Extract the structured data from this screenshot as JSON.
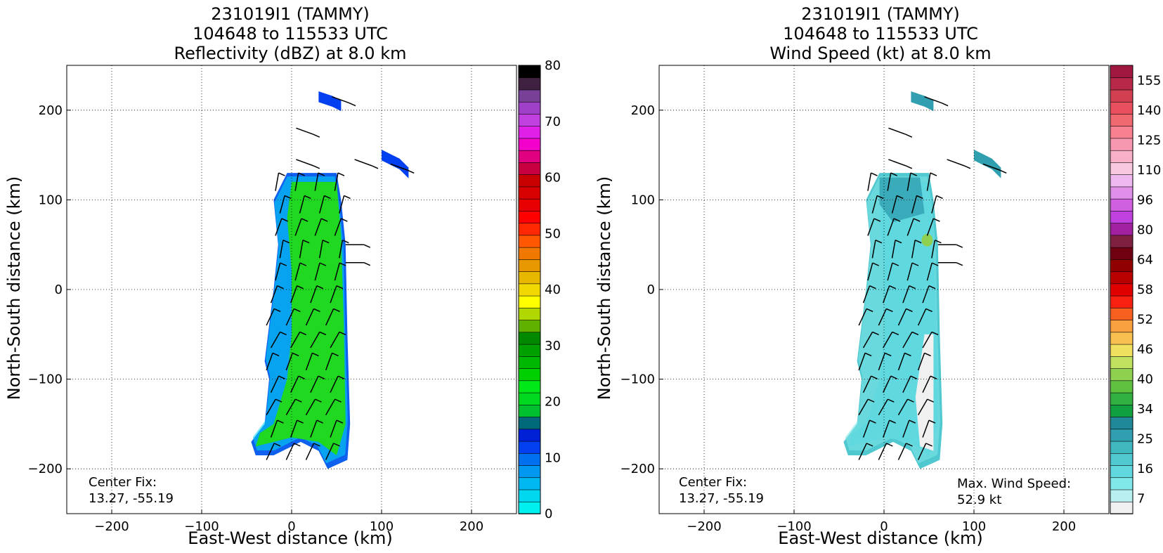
{
  "chart_data": [
    {
      "type": "heatmap",
      "id": "reflectivity",
      "title_lines": [
        "231019I1 (TAMMY)",
        "104648 to 115533 UTC",
        "Reflectivity (dBZ) at 8.0 km"
      ],
      "xlabel": "East-West distance (km)",
      "ylabel": "North-South distance (km)",
      "xlim": [
        -250,
        250
      ],
      "ylim": [
        -250,
        250
      ],
      "xticks": [
        -200,
        -100,
        0,
        100,
        200
      ],
      "yticks": [
        -200,
        -100,
        0,
        100,
        200
      ],
      "grid": true,
      "annotation_lines": [
        "Center Fix:",
        "13.27, -55.19"
      ],
      "colorbar": {
        "range": [
          0,
          80
        ],
        "tick_values": [
          0,
          10,
          20,
          30,
          40,
          50,
          60,
          70,
          80
        ],
        "colors": [
          "#00f0f0",
          "#00d8f0",
          "#00b8f0",
          "#0098f0",
          "#0070f0",
          "#0040f0",
          "#0020d8",
          "#006878",
          "#00c030",
          "#00d820",
          "#00e818",
          "#00d000",
          "#00b800",
          "#00a000",
          "#008800",
          "#60b000",
          "#b0d800",
          "#ffff00",
          "#f0d800",
          "#e8b800",
          "#e89800",
          "#f07800",
          "#ff5800",
          "#ff2800",
          "#ff0000",
          "#e80000",
          "#d80000",
          "#c80000",
          "#c80040",
          "#e00080",
          "#f000c8",
          "#e020e8",
          "#c040e0",
          "#a040c8",
          "#784098",
          "#402040",
          "#000000"
        ]
      },
      "wind_barbs": "black barbs along rainband",
      "echo_region": [
        [
          -5,
          130
        ],
        [
          50,
          130
        ],
        [
          55,
          100
        ],
        [
          60,
          50
        ],
        [
          62,
          -50
        ],
        [
          65,
          -150
        ],
        [
          62,
          -190
        ],
        [
          40,
          -200
        ],
        [
          30,
          -180
        ],
        [
          10,
          -170
        ],
        [
          -20,
          -185
        ],
        [
          -40,
          -185
        ],
        [
          -45,
          -170
        ],
        [
          -30,
          -150
        ],
        [
          -25,
          -100
        ],
        [
          -30,
          -80
        ],
        [
          -20,
          0
        ],
        [
          -15,
          50
        ],
        [
          -20,
          100
        ],
        [
          -10,
          120
        ]
      ],
      "core_region": [
        [
          0,
          120
        ],
        [
          50,
          120
        ],
        [
          55,
          60
        ],
        [
          58,
          -40
        ],
        [
          60,
          -150
        ],
        [
          50,
          -185
        ],
        [
          30,
          -170
        ],
        [
          0,
          -165
        ],
        [
          -40,
          -175
        ],
        [
          -35,
          -160
        ],
        [
          -20,
          -150
        ],
        [
          -5,
          -100
        ],
        [
          0,
          -50
        ],
        [
          0,
          20
        ],
        [
          -5,
          80
        ]
      ],
      "series": [
        {
          "x": [
            30,
            45,
            55
          ],
          "y": [
            215,
            210,
            205
          ],
          "region": "blob"
        },
        {
          "x": [
            100,
            120,
            130
          ],
          "y": [
            150,
            140,
            130
          ],
          "region": "blob"
        }
      ]
    },
    {
      "type": "heatmap",
      "id": "windspeed",
      "title_lines": [
        "231019I1 (TAMMY)",
        "104648 to 115533 UTC",
        "Wind Speed (kt) at 8.0 km"
      ],
      "xlabel": "East-West distance (km)",
      "ylabel": "North-South distance (km)",
      "xlim": [
        -250,
        250
      ],
      "ylim": [
        -250,
        250
      ],
      "xticks": [
        -200,
        -100,
        0,
        100,
        200
      ],
      "yticks": [
        -200,
        -100,
        0,
        100,
        200
      ],
      "grid": true,
      "annotation_lines": [
        "Center Fix:",
        "13.27, -55.19"
      ],
      "max_wind_lines": [
        "Max. Wind Speed:",
        "52.9 kt"
      ],
      "colorbar": {
        "tick_labels": [
          "7",
          "16",
          "25",
          "34",
          "40",
          "46",
          "52",
          "58",
          "64",
          "80",
          "96",
          "110",
          "125",
          "140",
          "155"
        ],
        "colors": [
          "#f0f0f0",
          "#b8f0f0",
          "#80e8e8",
          "#60d8e0",
          "#50c8d0",
          "#40b8c0",
          "#30a0b0",
          "#208898",
          "#10a040",
          "#30b040",
          "#60c040",
          "#90d050",
          "#c0e060",
          "#f0e060",
          "#f8c050",
          "#f8a040",
          "#f86020",
          "#f82010",
          "#e00000",
          "#b80000",
          "#900000",
          "#700010",
          "#802040",
          "#a020a0",
          "#c040e0",
          "#d060e0",
          "#e090e8",
          "#f0b8f0",
          "#f8c8e0",
          "#f8b0c8",
          "#f898b0",
          "#f88090",
          "#f06870",
          "#e85060",
          "#d04050",
          "#b82848",
          "#a01840"
        ]
      }
    }
  ]
}
